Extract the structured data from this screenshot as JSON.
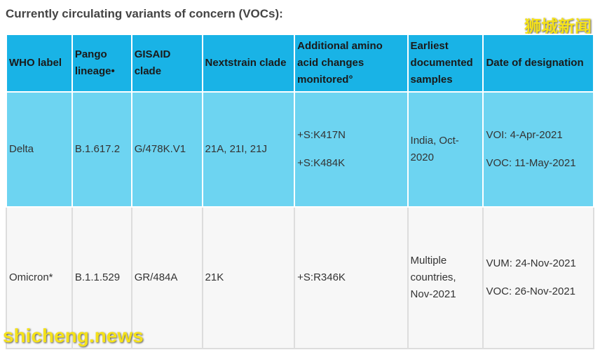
{
  "header": {
    "title": "Currently circulating variants of concern (VOCs):",
    "watermark": "狮城新闻"
  },
  "table": {
    "columns": [
      "WHO label",
      "Pango lineage•",
      "GISAID clade",
      "Nextstrain clade",
      "Additional amino acid changes monitored°",
      "Earliest documented samples",
      "Date of designation"
    ],
    "rows": [
      [
        [
          "Delta"
        ],
        [
          "B.1.617.2"
        ],
        [
          "G/478K.V1"
        ],
        [
          "21A, 21I, 21J"
        ],
        [
          "+S:K417N",
          "+S:K484K"
        ],
        [
          "India, Oct-2020"
        ],
        [
          "VOI: 4-Apr-2021",
          "VOC: 11-May-2021"
        ]
      ],
      [
        [
          "Omicron*"
        ],
        [
          "B.1.1.529"
        ],
        [
          "GR/484A"
        ],
        [
          "21K"
        ],
        [
          "+S:R346K"
        ],
        [
          "Multiple countries, Nov-2021"
        ],
        [
          "VUM: 24-Nov-2021",
          "VOC: 26-Nov-2021"
        ]
      ]
    ]
  },
  "footer": {
    "watermark": "shicheng.news"
  }
}
